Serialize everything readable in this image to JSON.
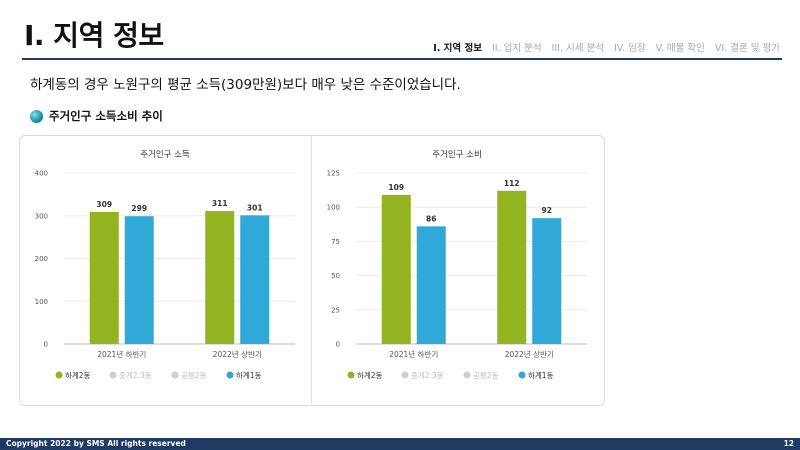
{
  "header": {
    "title": "I. 지역 정보",
    "nav": [
      "I. 지역 정보",
      "II. 입지 분석",
      "III. 시세 분석",
      "IV. 임장",
      "V. 매물 확인",
      "VI. 결론 및 평가"
    ],
    "active_index": 0
  },
  "summary": "하계동의 경우 노원구의 평균 소득(309만원)보다 매우 낮은 수준이었습니다.",
  "section_title": "주거인구 소득소비 추이",
  "chart_data": [
    {
      "type": "bar",
      "title": "주거인구 소득",
      "categories": [
        "2021년 하반기",
        "2022년 상반기"
      ],
      "ylim": [
        0,
        400
      ],
      "yticks": [
        0,
        100,
        200,
        300,
        400
      ],
      "series": [
        {
          "name": "하계2동",
          "values": [
            309,
            311
          ],
          "color": "#94b320",
          "visible": true
        },
        {
          "name": "중계2.3동",
          "values": [
            null,
            null
          ],
          "color": "#c8c8c8",
          "visible": false
        },
        {
          "name": "공릉2동",
          "values": [
            null,
            null
          ],
          "color": "#c8c8c8",
          "visible": false
        },
        {
          "name": "하계1동",
          "values": [
            299,
            301
          ],
          "color": "#30a8d8",
          "visible": true
        }
      ],
      "legend": "bottom",
      "grid": true
    },
    {
      "type": "bar",
      "title": "주거인구 소비",
      "categories": [
        "2021년 하반기",
        "2022년 상반기"
      ],
      "ylim": [
        0,
        125
      ],
      "yticks": [
        0,
        25,
        50,
        75,
        100,
        125
      ],
      "series": [
        {
          "name": "하계2동",
          "values": [
            109,
            112
          ],
          "color": "#94b320",
          "visible": true
        },
        {
          "name": "중계2.3동",
          "values": [
            null,
            null
          ],
          "color": "#c8c8c8",
          "visible": false
        },
        {
          "name": "공릉2동",
          "values": [
            null,
            null
          ],
          "color": "#c8c8c8",
          "visible": false
        },
        {
          "name": "하계1동",
          "values": [
            86,
            92
          ],
          "color": "#30a8d8",
          "visible": true
        }
      ],
      "legend": "bottom",
      "grid": true
    }
  ],
  "footer": {
    "copyright": "Copyright 2022 by SMS All rights reserved",
    "page": "12"
  }
}
